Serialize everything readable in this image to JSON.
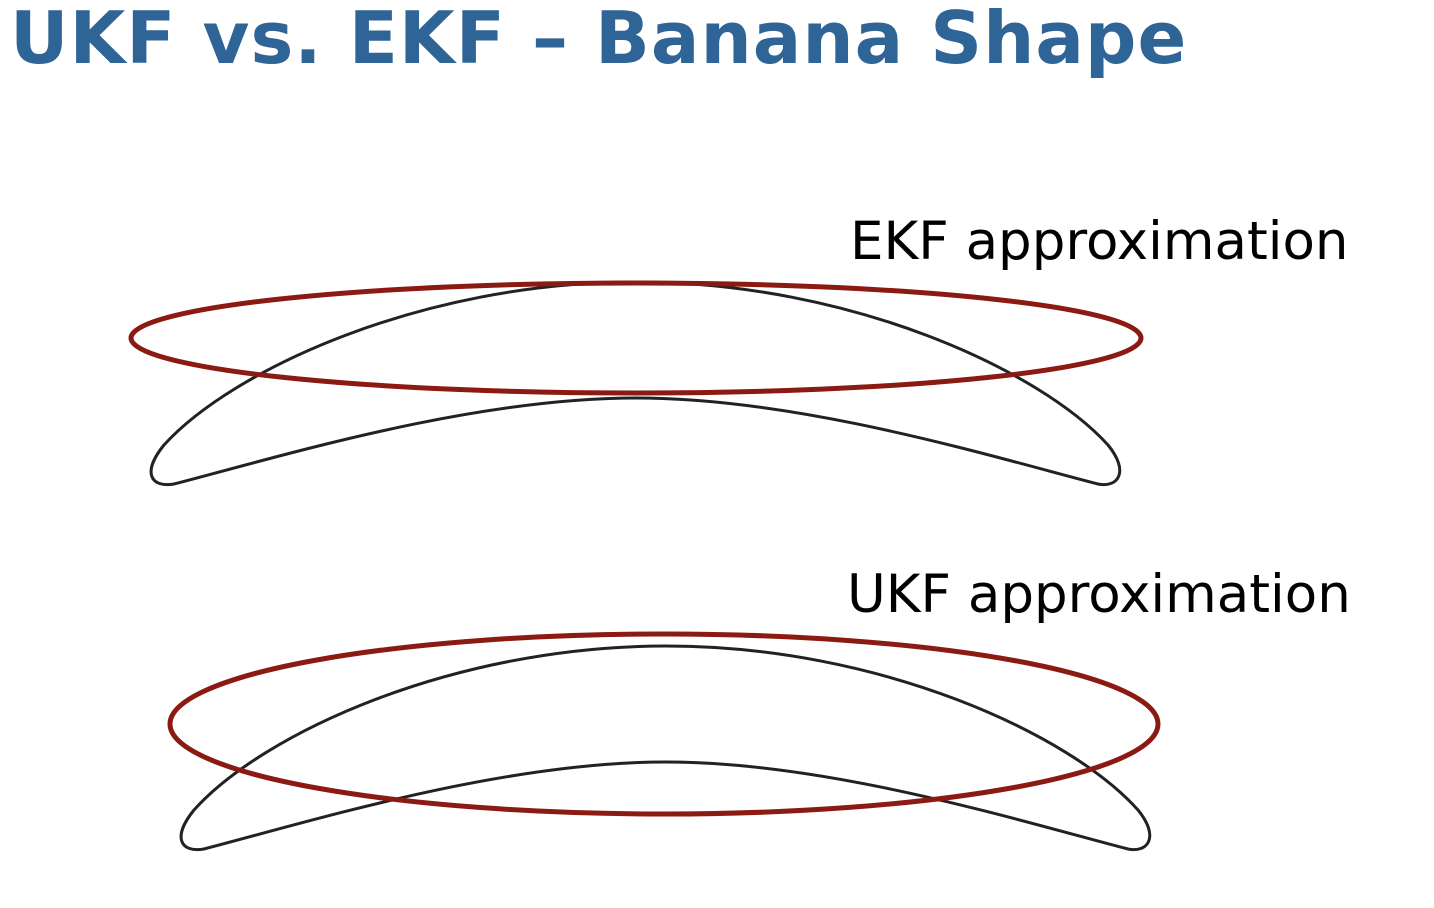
{
  "slide": {
    "title": "UKF vs. EKF – Banana Shape",
    "title_color": "#2E6496"
  },
  "diagram": {
    "ekf": {
      "label": "EKF approximation",
      "banana_color": "#222222",
      "ellipse_color": "#8B1A12"
    },
    "ukf": {
      "label": "UKF approximation",
      "banana_color": "#222222",
      "ellipse_color": "#8B1A12"
    }
  }
}
